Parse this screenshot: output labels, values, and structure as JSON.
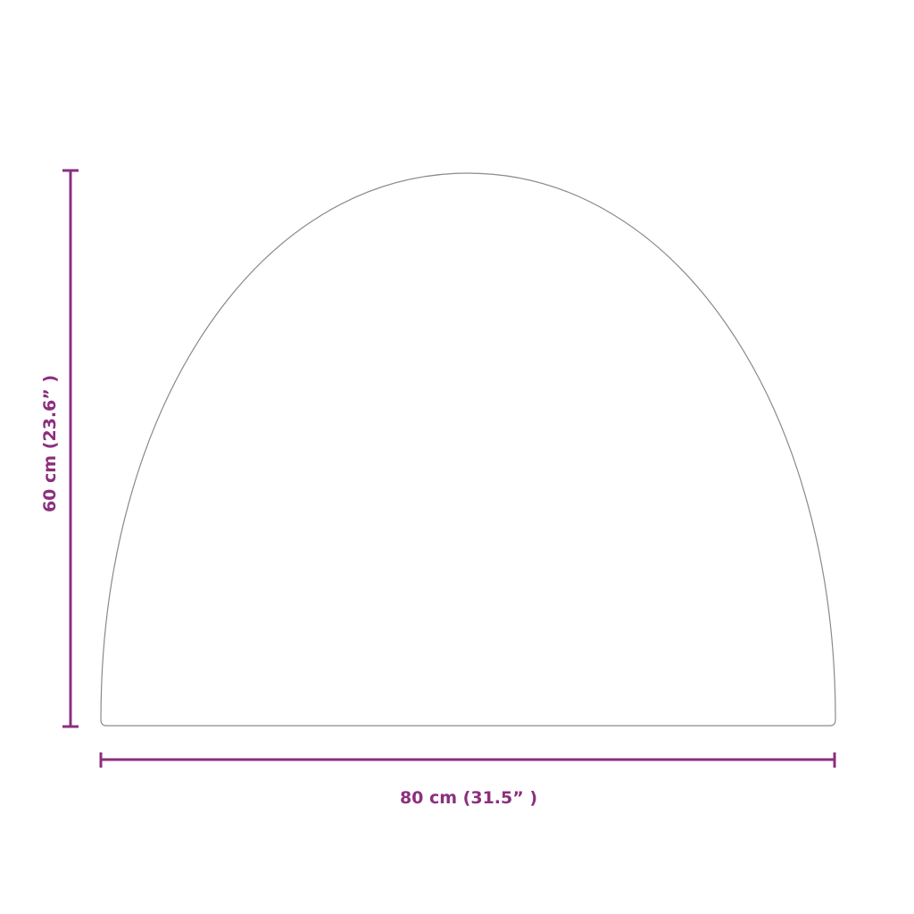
{
  "dimensions": {
    "width_label": "80 cm (31.5” )",
    "height_label": "60 cm (23.6” )"
  },
  "colors": {
    "dimension": "#8b2f7e",
    "outline": "#8a8a8a"
  }
}
